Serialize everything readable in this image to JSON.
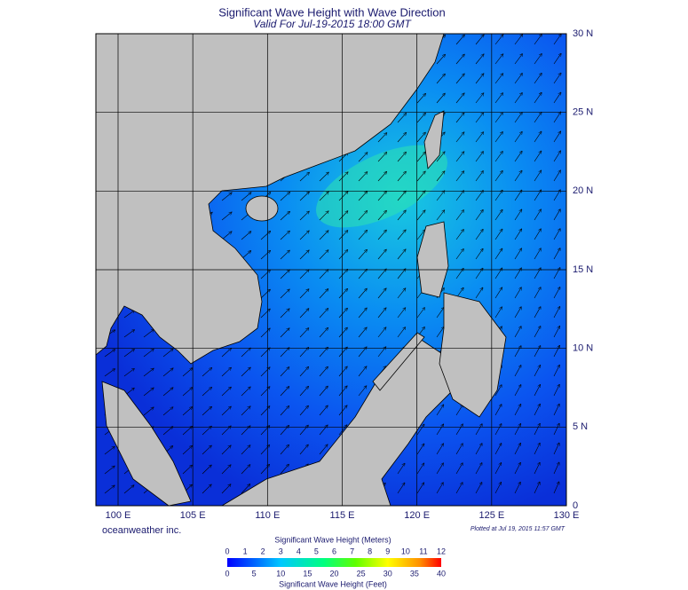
{
  "title": "Significant Wave Height with Wave Direction",
  "subtitle": "Valid For Jul-19-2015 18:00 GMT",
  "lon_ticks": [
    {
      "value": 100,
      "label": "100 E"
    },
    {
      "value": 105,
      "label": "105 E"
    },
    {
      "value": 110,
      "label": "110 E"
    },
    {
      "value": 115,
      "label": "115 E"
    },
    {
      "value": 120,
      "label": "120 E"
    },
    {
      "value": 125,
      "label": "125 E"
    },
    {
      "value": 130,
      "label": "130 E"
    }
  ],
  "lat_ticks": [
    {
      "value": 0,
      "label": "0"
    },
    {
      "value": 5,
      "label": "5 N"
    },
    {
      "value": 10,
      "label": "10 N"
    },
    {
      "value": 15,
      "label": "15 N"
    },
    {
      "value": 20,
      "label": "20 N"
    },
    {
      "value": 25,
      "label": "25 N"
    },
    {
      "value": 30,
      "label": "30 N"
    }
  ],
  "credit": "oceanweather inc.",
  "plotted": "Plotted at Jul 19, 2015 11:57 GMT",
  "colorbar": {
    "title_top": "Significant Wave Height (Meters)",
    "title_bottom": "Significant Wave Height (Feet)",
    "meters": [
      0,
      1,
      2,
      3,
      4,
      5,
      6,
      7,
      8,
      9,
      10,
      11,
      12
    ],
    "feet": [
      0,
      5,
      10,
      15,
      20,
      25,
      30,
      35,
      40
    ]
  }
}
